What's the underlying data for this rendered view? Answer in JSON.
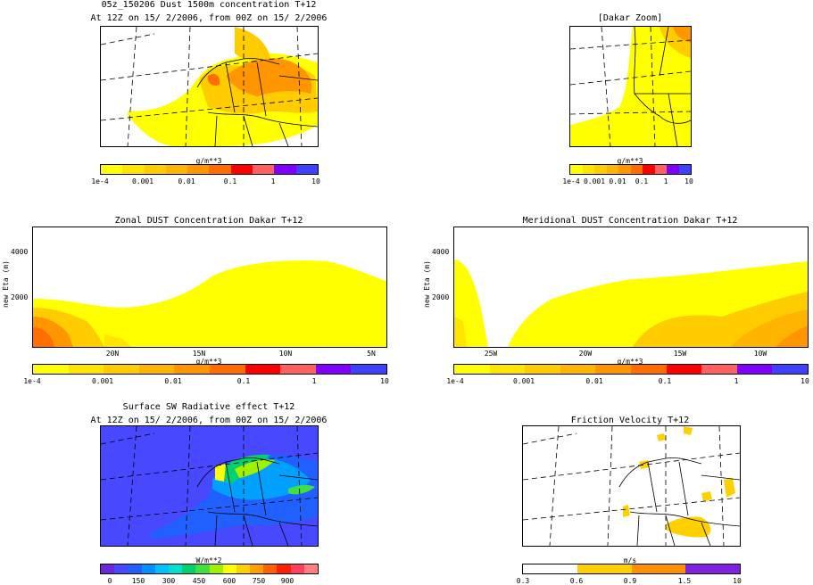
{
  "panel1": {
    "title1": "05z_150206 Dust 1500m concentration T+12",
    "title2": "At 12Z on 15/ 2/2006, from 00Z on 15/ 2/2006",
    "units": "g/m**3",
    "ticks": [
      "1e-4",
      "0.001",
      "0.01",
      "0.1",
      "1",
      "10"
    ]
  },
  "panel2": {
    "title": "[Dakar Zoom]",
    "units": "g/m**3",
    "ticks": [
      "1e-4",
      "0.001",
      "0.01",
      "0.1",
      "1",
      "10"
    ]
  },
  "panel3": {
    "title": "Zonal DUST Concentration Dakar T+12",
    "ylabel": "new Eta (m)",
    "yticks": [
      "4000",
      "2000"
    ],
    "xticks": [
      "20N",
      "15N",
      "10N",
      "5N"
    ],
    "units": "g/m**3",
    "ticks": [
      "1e-4",
      "0.001",
      "0.01",
      "0.1",
      "1",
      "10"
    ]
  },
  "panel4": {
    "title": "Meridional DUST Concentration Dakar T+12",
    "ylabel": "new Eta (m)",
    "yticks": [
      "4000",
      "2000"
    ],
    "xticks": [
      "25W",
      "20W",
      "15W",
      "10W"
    ],
    "units": "g/m**3",
    "ticks": [
      "1e-4",
      "0.001",
      "0.01",
      "0.1",
      "1",
      "10"
    ]
  },
  "panel5": {
    "title1": "Surface SW Radiative effect T+12",
    "title2": "At 12Z on 15/ 2/2006, from 00Z on 15/ 2/2006",
    "units": "W/m**2",
    "ticks": [
      "0",
      "150",
      "300",
      "450",
      "600",
      "750",
      "900"
    ]
  },
  "panel6": {
    "title": "Friction Velocity T+12",
    "units": "m/s",
    "ticks": [
      "0.3",
      "0.6",
      "0.9",
      "1.5",
      "10"
    ]
  },
  "colors": {
    "dust": [
      "#ffff00",
      "#ffe400",
      "#ffcc00",
      "#ffb400",
      "#ff9600",
      "#ff6e00",
      "#ff0000",
      "#ff6060",
      "#8000ff",
      "#4040ff"
    ],
    "sw": [
      "#6a28d8",
      "#4848ff",
      "#2060ff",
      "#0090ff",
      "#00c0ff",
      "#00e0d0",
      "#00d070",
      "#40e040",
      "#a0f000",
      "#ffff00",
      "#ffd000",
      "#ffa000",
      "#ff6000",
      "#ff2000",
      "#ff4060",
      "#ff8080"
    ],
    "ustar": [
      "#ffffff",
      "#ffd000",
      "#ff9000",
      "#8020e0"
    ]
  }
}
